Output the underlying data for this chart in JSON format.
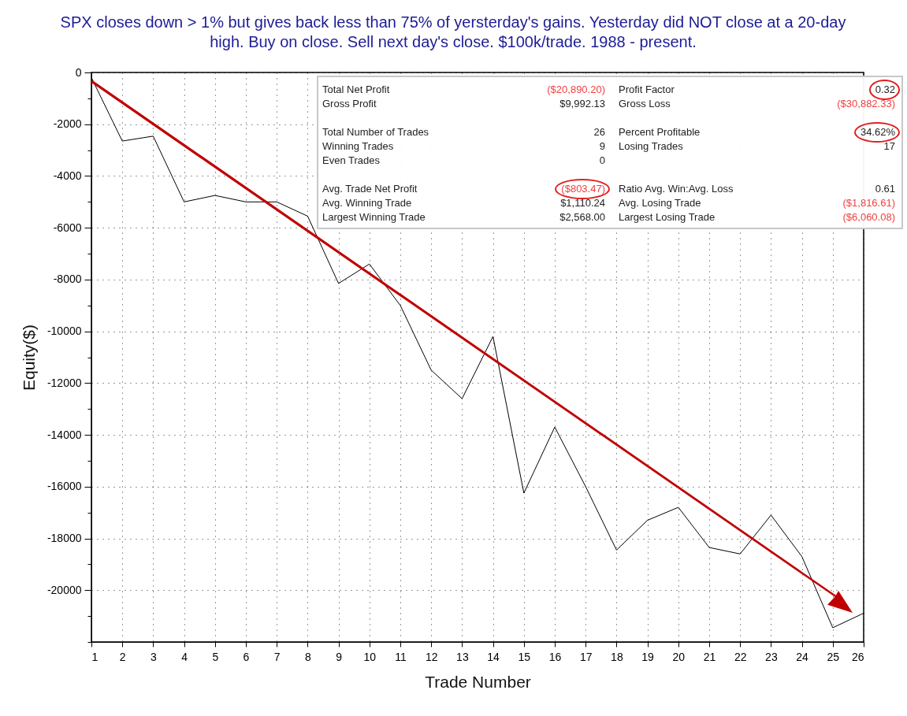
{
  "chart_data": {
    "type": "line",
    "title": "SPX closes down > 1% but gives back less than 75% of yersterday's gains. Yesterday did NOT close at a 20-day high. Buy on close. Sell next day's close. $100k/trade. 1988 - present.",
    "xlabel": "Trade Number",
    "ylabel": "Equity($)",
    "x": [
      1,
      2,
      3,
      4,
      5,
      6,
      7,
      8,
      9,
      10,
      11,
      12,
      13,
      14,
      15,
      16,
      17,
      18,
      19,
      20,
      21,
      22,
      23,
      24,
      25,
      26
    ],
    "series": [
      {
        "color": "#000000",
        "values": [
          -200,
          -2650,
          -2460,
          -5000,
          -4750,
          -5000,
          -5000,
          -5550,
          -8150,
          -7400,
          -9000,
          -11500,
          -12600,
          -10200,
          -16250,
          -13700,
          -16000,
          -18450,
          -17300,
          -16800,
          -18350,
          -18600,
          -17100,
          -18700,
          -21450,
          -20890
        ]
      }
    ],
    "xlim": [
      1,
      26
    ],
    "xticks": [
      1,
      2,
      3,
      4,
      5,
      6,
      7,
      8,
      9,
      10,
      11,
      12,
      13,
      14,
      15,
      16,
      17,
      18,
      19,
      20,
      21,
      22,
      23,
      24,
      25,
      26
    ],
    "ylim": [
      -22000,
      0
    ],
    "yticks": [
      0,
      {
        "value": -1000,
        "label": null
      },
      -2000,
      {
        "value": -3000,
        "label": null
      },
      -4000,
      {
        "value": -5000,
        "label": null
      },
      -6000,
      {
        "value": -7000,
        "label": null
      },
      -8000,
      {
        "value": -9000,
        "label": null
      },
      -10000,
      {
        "value": -11000,
        "label": null
      },
      -12000,
      {
        "value": -13000,
        "label": null
      },
      -14000,
      {
        "value": -15000,
        "label": null
      },
      -16000,
      {
        "value": -17000,
        "label": null
      },
      -18000,
      {
        "value": -19000,
        "label": null
      },
      -20000,
      {
        "value": -21000,
        "label": null
      },
      {
        "value": -22000,
        "label": null
      }
    ],
    "grid": true,
    "marker": "none",
    "line_style": "solid",
    "annotations": [
      "Total Net Profit",
      "($20,890.20)",
      "Profit Factor",
      "0.32",
      "Gross Profit",
      "$9,992.13",
      "Gross Loss",
      "($30,882.33)",
      "Total Number of Trades",
      "26",
      "Percent Profitable",
      "34.62%",
      "Winning Trades",
      "9",
      "Losing Trades",
      "17",
      "Even Trades",
      "0",
      "Avg. Trade Net Profit",
      "($803.47)",
      "Ratio Avg. Win:Avg. Loss",
      "0.61",
      "Avg. Winning Trade",
      "$1,110.24",
      "Avg. Losing Trade",
      "($1,816.61)",
      "Largest Winning Trade",
      "$2,568.00",
      "Largest Losing Trade",
      "($6,060.08)"
    ]
  }
}
